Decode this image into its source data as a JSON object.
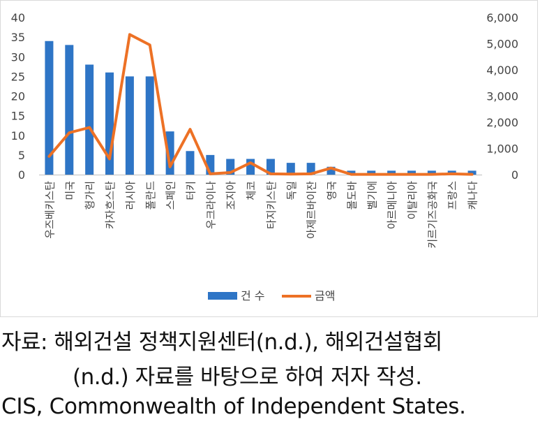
{
  "chart_data": {
    "type": "bar",
    "categories": [
      "우즈베키스탄",
      "미국",
      "헝가리",
      "카자흐스탄",
      "러시아",
      "폴란드",
      "스페인",
      "터키",
      "우크라이나",
      "조지아",
      "체코",
      "타지키스탄",
      "독일",
      "아제르바이잔",
      "영국",
      "몰도바",
      "벨기에",
      "아르메니아",
      "이탈리아",
      "키르기즈공화국",
      "프랑스",
      "캐나다"
    ],
    "series": [
      {
        "name": "건 수",
        "type": "bar",
        "axis": "left",
        "color": "#2e75c6",
        "values": [
          34,
          33,
          28,
          26,
          25,
          25,
          11,
          6,
          5,
          4,
          4,
          4,
          3,
          3,
          2,
          1,
          1,
          1,
          1,
          1,
          1,
          1
        ]
      },
      {
        "name": "금액",
        "type": "line",
        "axis": "right",
        "color": "#ed7125",
        "values": [
          700,
          1600,
          1800,
          600,
          5350,
          4950,
          300,
          1730,
          30,
          80,
          450,
          30,
          20,
          30,
          250,
          10,
          10,
          10,
          10,
          10,
          30,
          10
        ]
      }
    ],
    "y_left": {
      "min": 0,
      "max": 40,
      "ticks": [
        "0",
        "5",
        "10",
        "15",
        "20",
        "25",
        "30",
        "35",
        "40"
      ],
      "values": [
        0,
        5,
        10,
        15,
        20,
        25,
        30,
        35,
        40
      ]
    },
    "y_right": {
      "min": 0,
      "max": 6000,
      "ticks": [
        "0",
        "1,000",
        "2,000",
        "3,000",
        "4,000",
        "5,000",
        "6,000"
      ],
      "values": [
        0,
        1000,
        2000,
        3000,
        4000,
        5000,
        6000
      ]
    },
    "grid": false,
    "legend_position": "bottom"
  },
  "captions": {
    "source_line1": "자료:  해외건설  정책지원센터(n.d.),  해외건설협회",
    "source_line2": "(n.d.) 자료를 바탕으로 하여 저자 작성.",
    "note": "CIS, Commonwealth of Independent States."
  }
}
